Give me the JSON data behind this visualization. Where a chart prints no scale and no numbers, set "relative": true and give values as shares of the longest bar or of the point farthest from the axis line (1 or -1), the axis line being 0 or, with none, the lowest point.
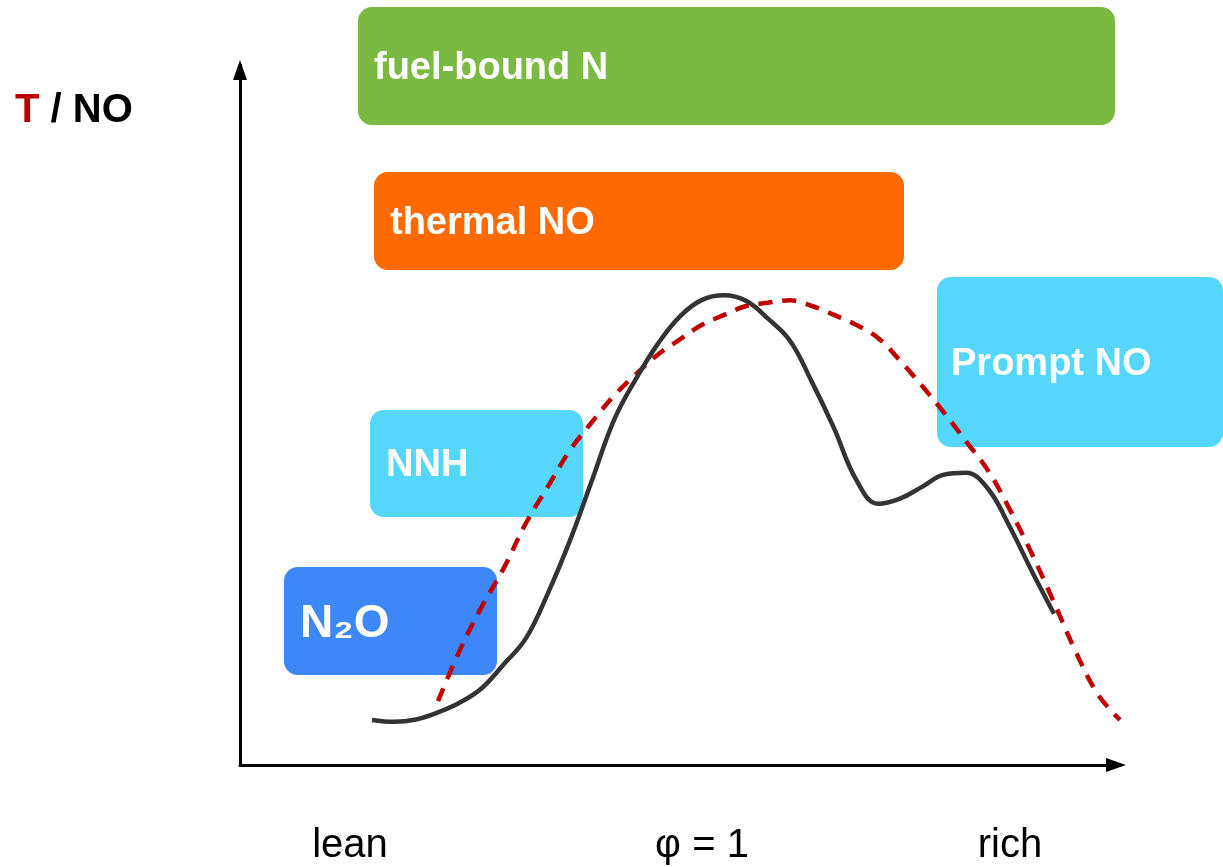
{
  "chart_data": {
    "type": "line",
    "relative": true,
    "ylabel": "T / NO",
    "categories": [
      null,
      null,
      null,
      null,
      null,
      "lean",
      null,
      null,
      null,
      null,
      null,
      null,
      null,
      null,
      null,
      null,
      null,
      null,
      null,
      null,
      null,
      "φ = 1",
      null,
      null,
      null,
      null,
      null,
      null,
      null,
      null,
      null,
      null,
      null,
      null,
      null,
      "rich",
      null,
      null,
      null,
      null,
      null
    ],
    "grid": false,
    "marker": "none",
    "series": [
      {
        "color": "#c00000",
        "line_style": "dashed",
        "values": [
          null,
          null,
          null,
          null,
          null,
          null,
          null,
          null,
          null,
          0.136,
          0.245,
          0.338,
          0.42,
          0.515,
          0.593,
          0.67,
          0.73,
          0.786,
          0.832,
          0.874,
          0.906,
          0.937,
          0.958,
          0.977,
          0.984,
          0.989,
          0.977,
          0.958,
          0.937,
          0.909,
          0.861,
          0.807,
          0.75,
          0.689,
          0.627,
          0.543,
          0.449,
          0.346,
          0.24,
          0.15,
          0.096
        ]
      },
      {
        "color": "#333333",
        "line_style": "solid",
        "values": [
          null,
          null,
          null,
          null,
          null,
          null,
          0.096,
          0.092,
          0.097,
          0.112,
          0.133,
          0.164,
          0.215,
          0.27,
          0.366,
          0.478,
          0.606,
          0.734,
          0.822,
          0.897,
          0.955,
          0.99,
          1,
          0.988,
          0.95,
          0.903,
          0.815,
          0.717,
          0.608,
          0.556,
          0.567,
          0.592,
          0.618,
          0.622,
          0.588,
          0.506,
          0.412,
          0.322,
          null,
          null,
          null
        ]
      }
    ],
    "annotations": [
      "fuel-bound N",
      "thermal NO",
      "Prompt NO",
      "NNH",
      "N₂O"
    ]
  }
}
